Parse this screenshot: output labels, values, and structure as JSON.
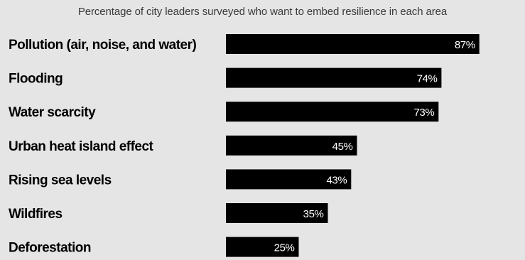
{
  "chart_data": {
    "type": "bar",
    "orientation": "horizontal",
    "title": "",
    "subtitle": "Percentage of city leaders surveyed who want to embed resilience in each area",
    "categories": [
      "Pollution (air, noise, and water)",
      "Flooding",
      "Water scarcity",
      "Urban heat island effect",
      "Rising sea levels",
      "Wildfires",
      "Deforestation"
    ],
    "values": [
      87,
      74,
      73,
      45,
      43,
      35,
      25
    ],
    "value_labels": [
      "87%",
      "74%",
      "73%",
      "45%",
      "43%",
      "35%",
      "25%"
    ],
    "xlim": [
      0,
      100
    ],
    "grid": false,
    "legend": "none",
    "bar_color": "#000000",
    "label_color": "#ffffff",
    "background_color": "#e5e5e5"
  }
}
